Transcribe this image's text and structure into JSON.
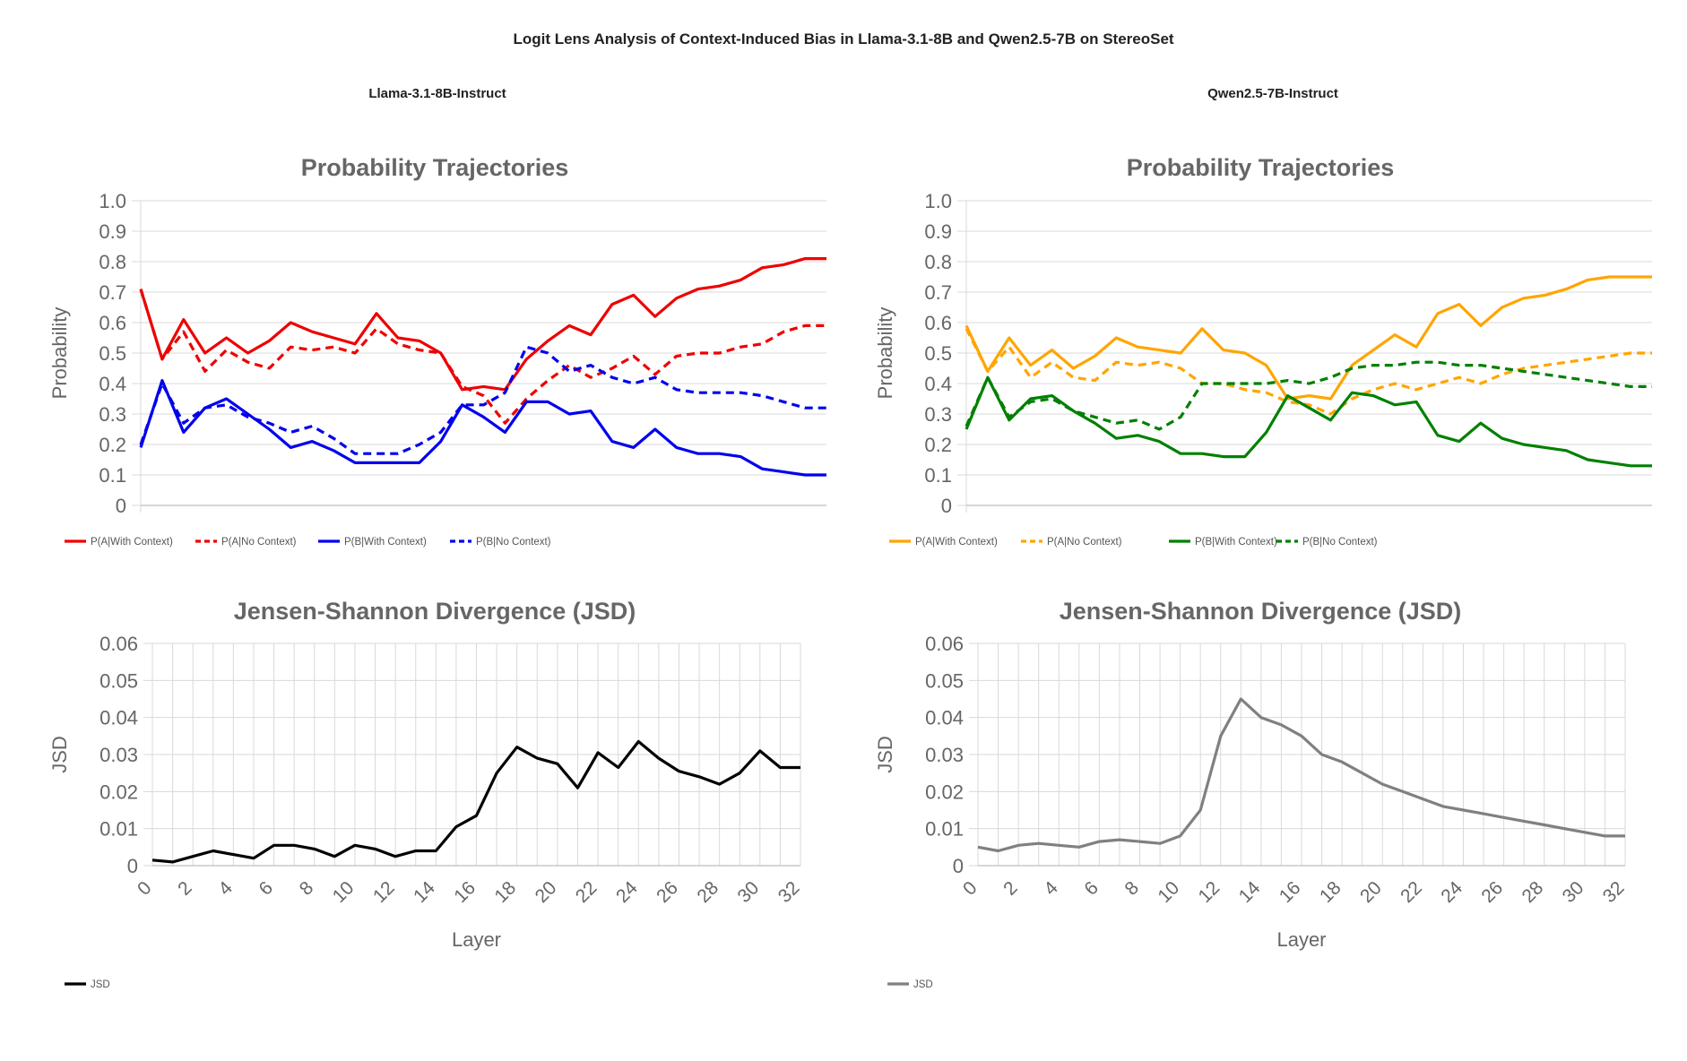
{
  "main_title": "Logit Lens Analysis of Context-Induced Bias in Llama-3.1-8B and Qwen2.5-7B on StereoSet",
  "panels": [
    {
      "name": "Llama-3.1-8B-Instruct"
    },
    {
      "name": "Qwen2.5-7B-Instruct"
    }
  ],
  "chart_data": [
    {
      "type": "line",
      "panel": "Llama-3.1-8B-Instruct",
      "title": "Probability Trajectories",
      "xlabel": "",
      "ylabel": "Probability",
      "xlim": [
        0,
        32
      ],
      "ylim": [
        0,
        1.0
      ],
      "yticks": [
        0,
        0.1,
        0.2,
        0.3,
        0.4,
        0.5,
        0.6,
        0.7,
        0.8,
        0.9,
        1.0
      ],
      "ytick_labels": [
        "0",
        "0.1",
        "0.2",
        "0.3",
        "0.4",
        "0.5",
        "0.6",
        "0.7",
        "0.8",
        "0.9",
        "1.0"
      ],
      "x": [
        0,
        1,
        2,
        3,
        4,
        5,
        6,
        7,
        8,
        9,
        10,
        11,
        12,
        13,
        14,
        15,
        16,
        17,
        18,
        19,
        20,
        21,
        22,
        23,
        24,
        25,
        26,
        27,
        28,
        29,
        30,
        31,
        32
      ],
      "series": [
        {
          "name": "P(A|With Context)",
          "color": "#ee0000",
          "dash": false,
          "values": [
            0.71,
            0.48,
            0.61,
            0.5,
            0.55,
            0.5,
            0.54,
            0.6,
            0.57,
            0.55,
            0.53,
            0.63,
            0.55,
            0.54,
            0.5,
            0.38,
            0.39,
            0.38,
            0.48,
            0.54,
            0.59,
            0.56,
            0.66,
            0.69,
            0.62,
            0.68,
            0.71,
            0.72,
            0.74,
            0.78,
            0.79,
            0.81,
            0.81
          ]
        },
        {
          "name": "P(A|No Context)",
          "color": "#ee0000",
          "dash": true,
          "values": [
            0.71,
            0.48,
            0.57,
            0.44,
            0.51,
            0.47,
            0.45,
            0.52,
            0.51,
            0.52,
            0.5,
            0.58,
            0.53,
            0.51,
            0.5,
            0.39,
            0.36,
            0.27,
            0.35,
            0.41,
            0.46,
            0.42,
            0.45,
            0.49,
            0.43,
            0.49,
            0.5,
            0.5,
            0.52,
            0.53,
            0.57,
            0.59,
            0.59
          ]
        },
        {
          "name": "P(B|With Context)",
          "color": "#0000ee",
          "dash": false,
          "values": [
            0.19,
            0.41,
            0.24,
            0.32,
            0.35,
            0.3,
            0.25,
            0.19,
            0.21,
            0.18,
            0.14,
            0.14,
            0.14,
            0.14,
            0.21,
            0.33,
            0.29,
            0.24,
            0.34,
            0.34,
            0.3,
            0.31,
            0.21,
            0.19,
            0.25,
            0.19,
            0.17,
            0.17,
            0.16,
            0.12,
            0.11,
            0.1,
            0.1
          ]
        },
        {
          "name": "P(B|No Context)",
          "color": "#0000ee",
          "dash": true,
          "values": [
            0.2,
            0.4,
            0.27,
            0.32,
            0.33,
            0.29,
            0.27,
            0.24,
            0.26,
            0.22,
            0.17,
            0.17,
            0.17,
            0.2,
            0.24,
            0.33,
            0.33,
            0.37,
            0.52,
            0.5,
            0.44,
            0.46,
            0.42,
            0.4,
            0.42,
            0.38,
            0.37,
            0.37,
            0.37,
            0.36,
            0.34,
            0.32,
            0.32
          ]
        }
      ]
    },
    {
      "type": "line",
      "panel": "Llama-3.1-8B-Instruct",
      "title": "Jensen-Shannon Divergence (JSD)",
      "xlabel": "Layer",
      "ylabel": "JSD",
      "xlim": [
        0,
        32
      ],
      "ylim": [
        0,
        0.06
      ],
      "yticks": [
        0,
        0.01,
        0.02,
        0.03,
        0.04,
        0.05,
        0.06
      ],
      "ytick_labels": [
        "0",
        "0.01",
        "0.02",
        "0.03",
        "0.04",
        "0.05",
        "0.06"
      ],
      "xticks": [
        0,
        2,
        4,
        6,
        8,
        10,
        12,
        14,
        16,
        18,
        20,
        22,
        24,
        26,
        28,
        30,
        32
      ],
      "xtick_labels": [
        "0",
        "2",
        "4",
        "6",
        "8",
        "10",
        "12",
        "14",
        "16",
        "18",
        "20",
        "22",
        "24",
        "26",
        "28",
        "30",
        "32"
      ],
      "x": [
        0,
        1,
        2,
        3,
        4,
        5,
        6,
        7,
        8,
        9,
        10,
        11,
        12,
        13,
        14,
        15,
        16,
        17,
        18,
        19,
        20,
        21,
        22,
        23,
        24,
        25,
        26,
        27,
        28,
        29,
        30,
        31,
        32
      ],
      "series": [
        {
          "name": "JSD",
          "color": "#000000",
          "dash": false,
          "values": [
            0.0015,
            0.001,
            0.0025,
            0.004,
            0.003,
            0.002,
            0.0055,
            0.0055,
            0.0045,
            0.0025,
            0.0055,
            0.0045,
            0.0025,
            0.004,
            0.004,
            0.0105,
            0.0135,
            0.025,
            0.032,
            0.029,
            0.0275,
            0.021,
            0.0305,
            0.0265,
            0.0335,
            0.029,
            0.0255,
            0.024,
            0.022,
            0.025,
            0.031,
            0.0265,
            0.0265
          ]
        }
      ]
    },
    {
      "type": "line",
      "panel": "Qwen2.5-7B-Instruct",
      "title": "Probability Trajectories",
      "xlabel": "",
      "ylabel": "Probability",
      "xlim": [
        0,
        32
      ],
      "ylim": [
        0,
        1.0
      ],
      "yticks": [
        0,
        0.1,
        0.2,
        0.3,
        0.4,
        0.5,
        0.6,
        0.7,
        0.8,
        0.9,
        1.0
      ],
      "ytick_labels": [
        "0",
        "0.1",
        "0.2",
        "0.3",
        "0.4",
        "0.5",
        "0.6",
        "0.7",
        "0.8",
        "0.9",
        "1.0"
      ],
      "x": [
        0,
        1,
        2,
        3,
        4,
        5,
        6,
        7,
        8,
        9,
        10,
        11,
        12,
        13,
        14,
        15,
        16,
        17,
        18,
        19,
        20,
        21,
        22,
        23,
        24,
        25,
        26,
        27,
        28,
        29,
        30,
        31,
        32
      ],
      "series": [
        {
          "name": "P(A|With Context)",
          "color": "#ffa500",
          "dash": false,
          "values": [
            0.59,
            0.44,
            0.55,
            0.46,
            0.51,
            0.45,
            0.49,
            0.55,
            0.52,
            0.51,
            0.5,
            0.58,
            0.51,
            0.5,
            0.46,
            0.35,
            0.36,
            0.35,
            0.46,
            0.51,
            0.56,
            0.52,
            0.63,
            0.66,
            0.59,
            0.65,
            0.68,
            0.69,
            0.71,
            0.74,
            0.75,
            0.75,
            0.75
          ]
        },
        {
          "name": "P(A|No Context)",
          "color": "#ffa500",
          "dash": true,
          "values": [
            0.58,
            0.44,
            0.52,
            0.42,
            0.47,
            0.42,
            0.41,
            0.47,
            0.46,
            0.47,
            0.45,
            0.4,
            0.4,
            0.38,
            0.37,
            0.34,
            0.33,
            0.3,
            0.35,
            0.38,
            0.4,
            0.38,
            0.4,
            0.42,
            0.4,
            0.43,
            0.45,
            0.46,
            0.47,
            0.48,
            0.49,
            0.5,
            0.5
          ]
        },
        {
          "name": "P(B|With Context)",
          "color": "#008000",
          "dash": false,
          "values": [
            0.25,
            0.42,
            0.28,
            0.35,
            0.36,
            0.31,
            0.27,
            0.22,
            0.23,
            0.21,
            0.17,
            0.17,
            0.16,
            0.16,
            0.24,
            0.36,
            0.32,
            0.28,
            0.37,
            0.36,
            0.33,
            0.34,
            0.23,
            0.21,
            0.27,
            0.22,
            0.2,
            0.19,
            0.18,
            0.15,
            0.14,
            0.13,
            0.13
          ]
        },
        {
          "name": "P(B|No Context)",
          "color": "#008000",
          "dash": true,
          "values": [
            0.26,
            0.42,
            0.29,
            0.34,
            0.35,
            0.31,
            0.29,
            0.27,
            0.28,
            0.25,
            0.29,
            0.4,
            0.4,
            0.4,
            0.4,
            0.41,
            0.4,
            0.42,
            0.45,
            0.46,
            0.46,
            0.47,
            0.47,
            0.46,
            0.46,
            0.45,
            0.44,
            0.43,
            0.42,
            0.41,
            0.4,
            0.39,
            0.39
          ]
        }
      ]
    },
    {
      "type": "line",
      "panel": "Qwen2.5-7B-Instruct",
      "title": "Jensen-Shannon Divergence (JSD)",
      "xlabel": "Layer",
      "ylabel": "JSD",
      "xlim": [
        0,
        32
      ],
      "ylim": [
        0,
        0.06
      ],
      "yticks": [
        0,
        0.01,
        0.02,
        0.03,
        0.04,
        0.05,
        0.06
      ],
      "ytick_labels": [
        "0",
        "0.01",
        "0.02",
        "0.03",
        "0.04",
        "0.05",
        "0.06"
      ],
      "xticks": [
        0,
        2,
        4,
        6,
        8,
        10,
        12,
        14,
        16,
        18,
        20,
        22,
        24,
        26,
        28,
        30,
        32
      ],
      "xtick_labels": [
        "0",
        "2",
        "4",
        "6",
        "8",
        "10",
        "12",
        "14",
        "16",
        "18",
        "20",
        "22",
        "24",
        "26",
        "28",
        "30",
        "32"
      ],
      "x": [
        0,
        1,
        2,
        3,
        4,
        5,
        6,
        7,
        8,
        9,
        10,
        11,
        12,
        13,
        14,
        15,
        16,
        17,
        18,
        19,
        20,
        21,
        22,
        23,
        24,
        25,
        26,
        27,
        28,
        29,
        30,
        31,
        32
      ],
      "series": [
        {
          "name": "JSD",
          "color": "#808080",
          "dash": false,
          "values": [
            0.005,
            0.004,
            0.0055,
            0.006,
            0.0055,
            0.005,
            0.0065,
            0.007,
            0.0065,
            0.006,
            0.008,
            0.015,
            0.035,
            0.045,
            0.04,
            0.038,
            0.035,
            0.03,
            0.028,
            0.025,
            0.022,
            0.02,
            0.018,
            0.016,
            0.015,
            0.014,
            0.013,
            0.012,
            0.011,
            0.01,
            0.009,
            0.008,
            0.008
          ]
        }
      ]
    }
  ]
}
